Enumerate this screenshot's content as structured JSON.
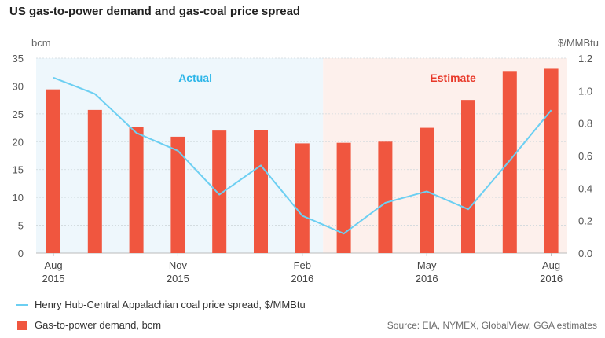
{
  "title": "US gas-to-power demand and gas-coal price spread",
  "source": "Source: EIA, NYMEX, GlobalView, GGA estimates",
  "colors": {
    "bar": "#f0563f",
    "line": "#6ccff2",
    "actual_bg": "#eef7fc",
    "estimate_bg": "#fdf0ec",
    "actual_text": "#2bb5e8",
    "estimate_text": "#e8392a"
  },
  "chart_data": {
    "type": "bar+line",
    "regions": [
      {
        "label": "Actual",
        "from_index": 0,
        "to_index": 6
      },
      {
        "label": "Estimate",
        "from_index": 7,
        "to_index": 12
      }
    ],
    "x_ticks": [
      {
        "index": 0,
        "line1": "Aug",
        "line2": "2015"
      },
      {
        "index": 3,
        "line1": "Nov",
        "line2": "2015"
      },
      {
        "index": 6,
        "line1": "Feb",
        "line2": "2016"
      },
      {
        "index": 9,
        "line1": "May",
        "line2": "2016"
      },
      {
        "index": 12,
        "line1": "Aug",
        "line2": "2016"
      }
    ],
    "left_axis": {
      "unit": "bcm",
      "min": 0,
      "max": 35,
      "ticks": [
        "0",
        "5",
        "10",
        "15",
        "20",
        "25",
        "30",
        "35"
      ]
    },
    "right_axis": {
      "unit": "$/MMBtu",
      "min": 0,
      "max": 1.2,
      "ticks": [
        "0.0",
        "0.2",
        "0.4",
        "0.6",
        "0.8",
        "1.0",
        "1.2"
      ]
    },
    "grid": true,
    "series": [
      {
        "name": "Gas-to-power demand, bcm",
        "kind": "bar",
        "axis": "left",
        "values": [
          29.4,
          25.7,
          22.7,
          20.9,
          22.0,
          22.1,
          19.7,
          19.8,
          20.0,
          22.5,
          27.5,
          32.7,
          33.1
        ]
      },
      {
        "name": "Henry Hub-Central Appalachian coal price spread, $/MMBtu",
        "kind": "line",
        "axis": "right",
        "values": [
          1.08,
          0.98,
          0.74,
          0.63,
          0.36,
          0.54,
          0.23,
          0.12,
          0.31,
          0.38,
          0.27,
          0.57,
          0.88
        ]
      }
    ]
  }
}
